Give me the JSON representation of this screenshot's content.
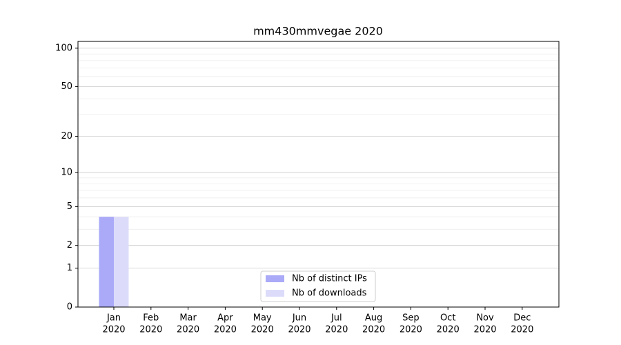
{
  "chart_data": {
    "type": "bar",
    "title": "mm430mmvegae 2020",
    "categories": [
      [
        "Jan",
        "2020"
      ],
      [
        "Feb",
        "2020"
      ],
      [
        "Mar",
        "2020"
      ],
      [
        "Apr",
        "2020"
      ],
      [
        "May",
        "2020"
      ],
      [
        "Jun",
        "2020"
      ],
      [
        "Jul",
        "2020"
      ],
      [
        "Aug",
        "2020"
      ],
      [
        "Sep",
        "2020"
      ],
      [
        "Oct",
        "2020"
      ],
      [
        "Nov",
        "2020"
      ],
      [
        "Dec",
        "2020"
      ]
    ],
    "series": [
      {
        "name": "Nb of distinct IPs",
        "color": "#aaaaf8",
        "values": [
          4,
          0,
          0,
          0,
          0,
          0,
          0,
          0,
          0,
          0,
          0,
          0
        ]
      },
      {
        "name": "Nb of downloads",
        "color": "#dcdcfa",
        "values": [
          4,
          0,
          0,
          0,
          0,
          0,
          0,
          0,
          0,
          0,
          0,
          0
        ]
      }
    ],
    "yscale": "log1p",
    "ylim": [
      0,
      113
    ],
    "yticks": [
      0,
      1,
      2,
      5,
      10,
      20,
      50,
      100
    ],
    "minor_yticks": [
      3,
      4,
      6,
      7,
      8,
      9,
      30,
      40,
      60,
      70,
      80,
      90
    ],
    "grid": true,
    "legend": "lower center"
  }
}
